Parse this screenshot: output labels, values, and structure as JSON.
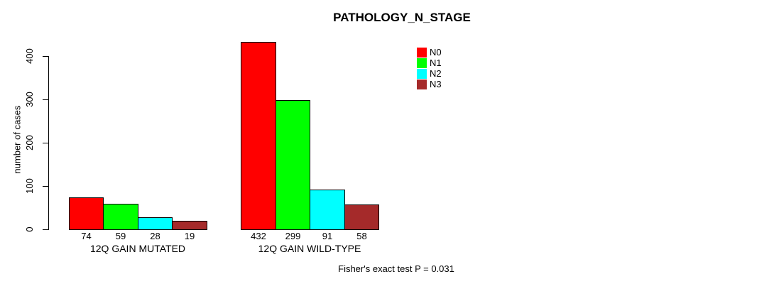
{
  "page": {
    "background": "#ffffff"
  },
  "chart_data": {
    "type": "bar",
    "title": "PATHOLOGY_N_STAGE",
    "xlabel": "",
    "ylabel": "number of cases",
    "ylim": [
      0,
      440
    ],
    "yticks": [
      0,
      100,
      200,
      300,
      400
    ],
    "grid": false,
    "categories": [
      "N0",
      "N1",
      "N2",
      "N3"
    ],
    "colors": [
      "#ff0000",
      "#00ff00",
      "#00ffff",
      "#a52a2a"
    ],
    "groups": [
      {
        "label": "12Q GAIN MUTATED",
        "values": [
          74,
          59,
          28,
          19
        ]
      },
      {
        "label": "12Q GAIN WILD-TYPE",
        "values": [
          432,
          299,
          91,
          58
        ]
      }
    ],
    "legend": {
      "position": "top-right"
    },
    "footnote": "Fisher's exact test P = 0.031",
    "axis_color": "#000000",
    "bar_border_color": "#000000"
  }
}
